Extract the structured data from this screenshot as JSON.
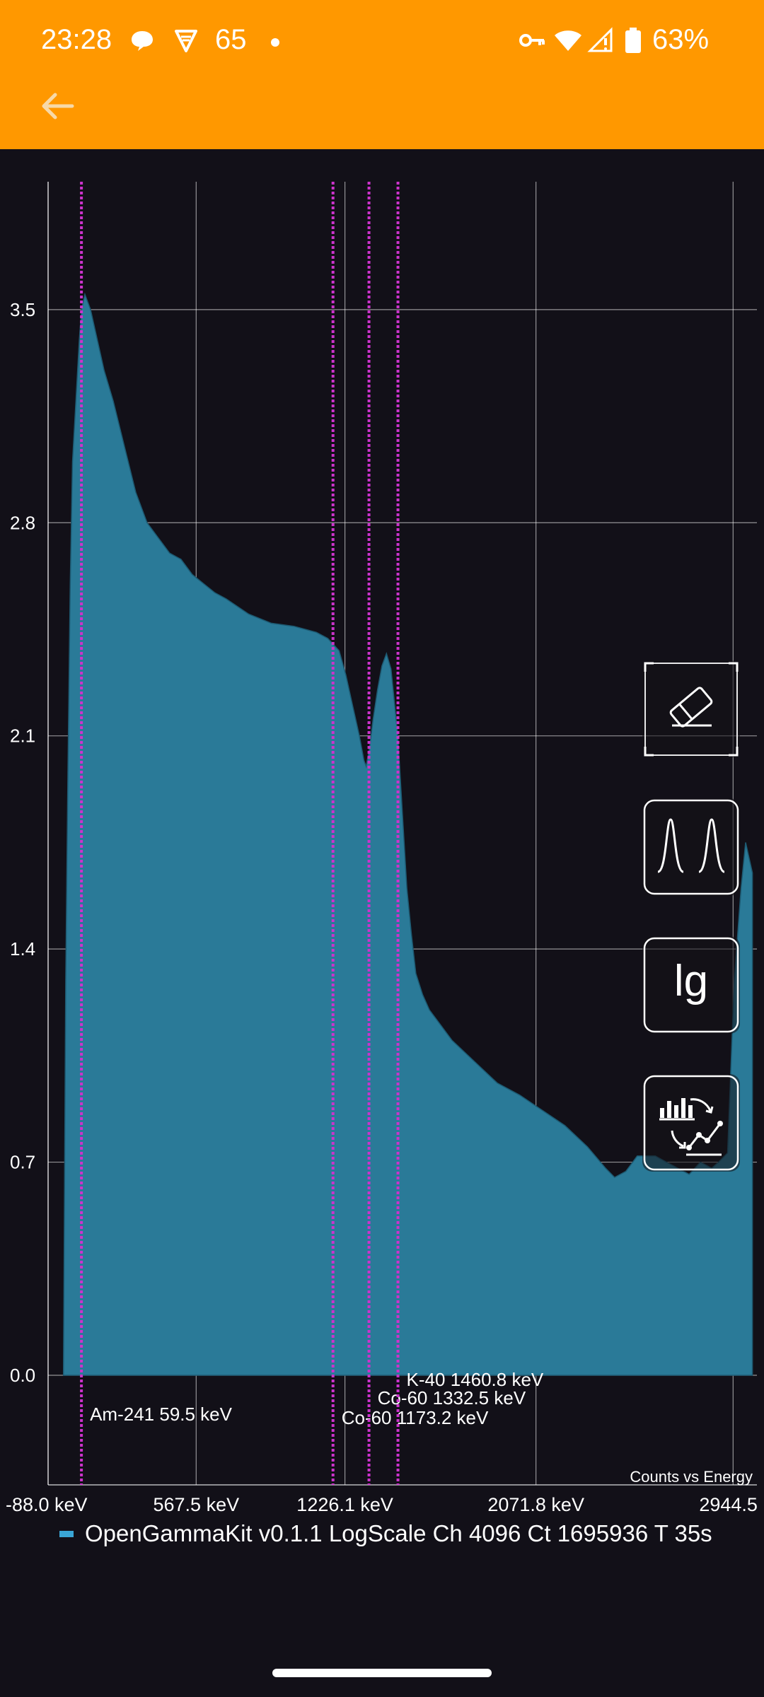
{
  "status_bar": {
    "time": "23:28",
    "notification_count": "65",
    "battery": "63%",
    "icons": [
      "chat-bubble-icon",
      "vpn-shield-icon",
      "dot-icon",
      "key-icon",
      "wifi-icon",
      "signal-icon",
      "battery-icon"
    ]
  },
  "app_bar": {
    "back_icon": "arrow-left-icon",
    "color": "#ff9800"
  },
  "fabs": [
    {
      "name": "clear-button",
      "icon": "eraser-icon"
    },
    {
      "name": "peaks-button",
      "icon": "gaussian-peaks-icon"
    },
    {
      "name": "log-scale-button",
      "icon": "lg-text-icon",
      "label": "lg"
    },
    {
      "name": "chart-mode-button",
      "icon": "bar-line-switch-icon"
    }
  ],
  "chart_data": {
    "type": "area",
    "description_label": "Counts vs Energy",
    "legend_label": "OpenGammaKit v0.1.1 LogScale Ch 4096 Ct 1695936 T 35s",
    "series_color": "#2a7a98",
    "legend_color": "#3aa6d6",
    "x_unit": "keV",
    "x_ticks": [
      "-88.0 keV",
      "567.5 keV",
      "1226.1 keV",
      "2071.8 keV",
      "2944.5 keV"
    ],
    "xlim": [
      -88.0,
      3050.0
    ],
    "y_ticks": [
      "0.0",
      "0.7",
      "1.4",
      "2.1",
      "2.8",
      "3.5"
    ],
    "ylim": [
      -0.36,
      3.92
    ],
    "grid": true,
    "x": [
      -20,
      -10,
      0,
      10,
      20,
      35,
      50,
      60,
      75,
      100,
      130,
      160,
      200,
      250,
      300,
      350,
      400,
      450,
      500,
      550,
      600,
      650,
      700,
      800,
      900,
      1000,
      1100,
      1150,
      1200,
      1230,
      1260,
      1290,
      1310,
      1320,
      1335,
      1350,
      1370,
      1390,
      1410,
      1430,
      1460,
      1480,
      1500,
      1520,
      1540,
      1570,
      1600,
      1650,
      1700,
      1800,
      1900,
      2000,
      2100,
      2200,
      2300,
      2380,
      2420,
      2470,
      2520,
      2600,
      2650,
      2700,
      2750,
      2800,
      2850,
      2880,
      2920,
      2950,
      2980,
      3000,
      3030
    ],
    "y": [
      0.0,
      1.3,
      2.0,
      2.6,
      3.0,
      3.2,
      3.4,
      3.5,
      3.55,
      3.5,
      3.4,
      3.3,
      3.2,
      3.05,
      2.9,
      2.8,
      2.75,
      2.7,
      2.68,
      2.63,
      2.6,
      2.57,
      2.55,
      2.5,
      2.47,
      2.46,
      2.44,
      2.42,
      2.38,
      2.3,
      2.2,
      2.1,
      2.02,
      2.0,
      2.06,
      2.15,
      2.25,
      2.33,
      2.37,
      2.32,
      2.1,
      1.85,
      1.6,
      1.45,
      1.32,
      1.25,
      1.2,
      1.15,
      1.1,
      1.03,
      0.96,
      0.92,
      0.87,
      0.82,
      0.75,
      0.68,
      0.65,
      0.67,
      0.72,
      0.72,
      0.7,
      0.68,
      0.66,
      0.7,
      0.68,
      0.7,
      0.73,
      1.3,
      1.6,
      1.75,
      1.65
    ],
    "markers": [
      {
        "label": "Am-241 59.5 keV",
        "energy": 59.5
      },
      {
        "label": "Co-60 1173.2 keV",
        "energy": 1173.2
      },
      {
        "label": "Co-60 1332.5 keV",
        "energy": 1332.5
      },
      {
        "label": "K-40 1460.8 keV",
        "energy": 1460.8
      }
    ],
    "marker_color": "#cc33cc"
  }
}
